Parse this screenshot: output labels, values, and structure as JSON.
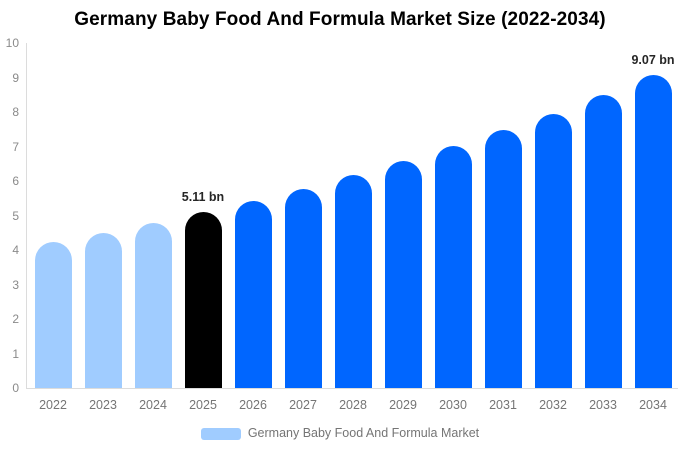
{
  "title": "Germany Baby Food And Formula Market Size (2022-2034)",
  "legend": {
    "label": "Germany Baby Food And Formula Market",
    "swatch_color": "#a0ccff"
  },
  "chart_data": {
    "type": "bar",
    "title": "Germany Baby Food And Formula Market Size (2022-2034)",
    "categories": [
      "2022",
      "2023",
      "2024",
      "2025",
      "2026",
      "2027",
      "2028",
      "2029",
      "2030",
      "2031",
      "2032",
      "2033",
      "2034"
    ],
    "values": [
      4.22,
      4.5,
      4.79,
      5.11,
      5.42,
      5.78,
      6.17,
      6.58,
      7.01,
      7.47,
      7.95,
      8.48,
      9.07
    ],
    "unit": "bn",
    "xlabel": "",
    "ylabel": "",
    "ylim": [
      0,
      10
    ],
    "yticks": [
      0,
      1,
      2,
      3,
      4,
      5,
      6,
      7,
      8,
      9,
      10
    ],
    "grid": false,
    "legend_position": "bottom",
    "bar_colors": {
      "2022": "#a0ccff",
      "2023": "#a0ccff",
      "2024": "#a0ccff",
      "2025": "#000000",
      "default": "#0066ff"
    },
    "annotations": [
      {
        "category": "2025",
        "text": "5.11 bn"
      },
      {
        "category": "2034",
        "text": "9.07 bn"
      }
    ],
    "colors": {
      "forecast_bar": "#0066ff",
      "historical_bar": "#a0ccff",
      "highlight_bar": "#000000",
      "axis_line": "#dcdcdc",
      "tick_text": "#8a8a8a",
      "category_text": "#757575",
      "annotation_text": "#262626",
      "title_text": "#000000"
    }
  }
}
